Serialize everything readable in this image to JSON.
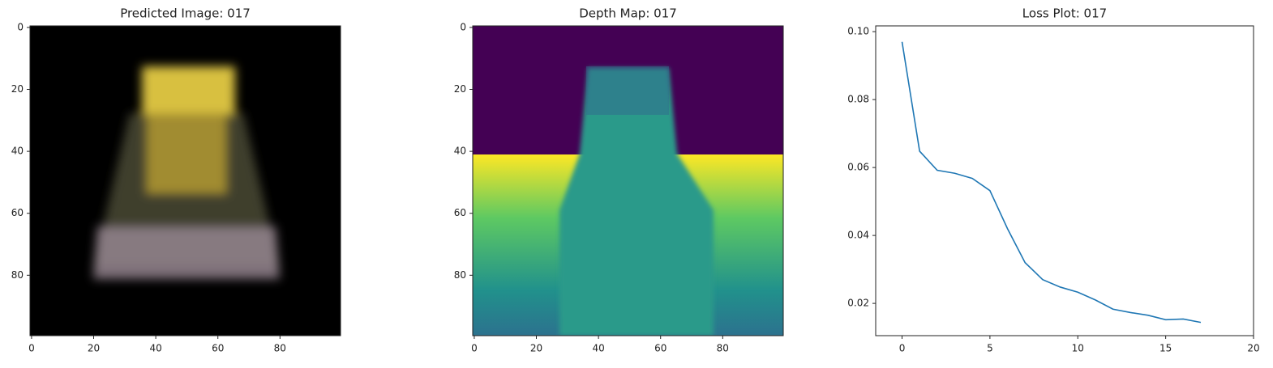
{
  "chart_data": [
    {
      "type": "image",
      "title": "Predicted Image: 017",
      "xlim": [
        -0.5,
        99.5
      ],
      "ylim": [
        99.5,
        -0.5
      ],
      "xticks": [
        0,
        20,
        40,
        60,
        80
      ],
      "yticks": [
        0,
        20,
        40,
        60,
        80
      ]
    },
    {
      "type": "image",
      "title": "Depth Map: 017",
      "xlim": [
        -0.5,
        99.5
      ],
      "ylim": [
        99.5,
        -0.5
      ],
      "xticks": [
        0,
        20,
        40,
        60,
        80
      ],
      "yticks": [
        0,
        20,
        40,
        60,
        80
      ]
    },
    {
      "type": "line",
      "title": "Loss Plot: 017",
      "x": [
        0,
        1,
        2,
        3,
        4,
        5,
        6,
        7,
        8,
        9,
        10,
        11,
        12,
        13,
        14,
        15,
        16,
        17
      ],
      "series": [
        {
          "color": "#1f77b4",
          "values": [
            0.097,
            0.0648,
            0.0592,
            0.0583,
            0.0568,
            0.0532,
            0.042,
            0.032,
            0.027,
            0.0248,
            0.0233,
            0.021,
            0.0183,
            0.0173,
            0.0165,
            0.0152,
            0.0154,
            0.0144
          ]
        }
      ],
      "xlim": [
        -1.5,
        20
      ],
      "ylim": [
        0.0105,
        0.1017
      ],
      "xticks": [
        0,
        5,
        10,
        15,
        20
      ],
      "yticks": [
        {
          "value": 0.02,
          "label": "0.02"
        },
        {
          "value": 0.04,
          "label": "0.04"
        },
        {
          "value": 0.06,
          "label": "0.06"
        },
        {
          "value": 0.08,
          "label": "0.08"
        },
        {
          "value": 0.1,
          "label": "0.10"
        }
      ]
    }
  ]
}
